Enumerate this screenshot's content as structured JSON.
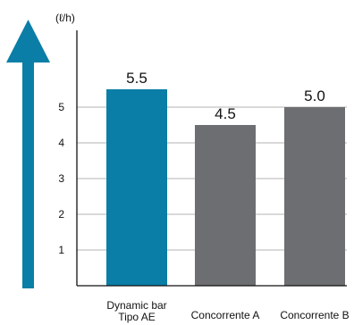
{
  "colors": {
    "primary": "#0A7EA6",
    "competitor": "#6D6E71",
    "arrow": "#0A7EA6",
    "grid": "#9A9A9A",
    "axis": "#111111"
  },
  "chart_data": {
    "type": "bar",
    "unit": "(ℓ/h)",
    "categories": [
      "Dynamic bar\nTipo AE",
      "Concorrente A",
      "Concorrente B"
    ],
    "values": [
      5.5,
      4.5,
      5.0
    ],
    "value_labels": [
      "5.5",
      "4.5",
      "5.0"
    ],
    "yticks": [
      1,
      2,
      3,
      4,
      5
    ],
    "ylim": [
      0,
      5.98
    ],
    "grid": true,
    "legend": "none",
    "bar_colors": [
      "#0A7EA6",
      "#6D6E71",
      "#6D6E71"
    ]
  }
}
